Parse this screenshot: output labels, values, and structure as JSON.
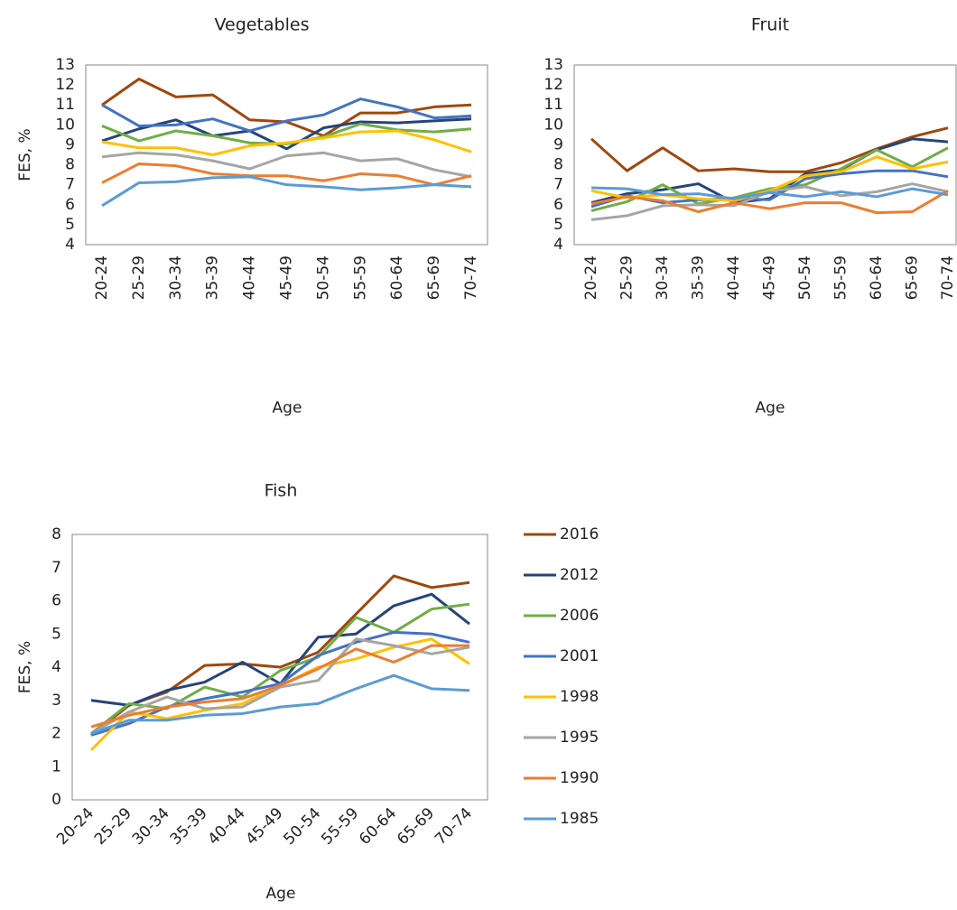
{
  "chart_data": [
    {
      "type": "line",
      "title": "Vegetables",
      "xlabel": "Age",
      "ylabel": "FES, %",
      "categories": [
        "20-24",
        "25-29",
        "30-34",
        "35-39",
        "40-44",
        "45-49",
        "50-54",
        "55-59",
        "60-64",
        "65-69",
        "70-74"
      ],
      "ylim": [
        4,
        13
      ],
      "yticks": [
        4,
        5,
        6,
        7,
        8,
        9,
        10,
        11,
        12,
        13
      ],
      "series": [
        {
          "name": "2016",
          "color": "#9e480e",
          "values": [
            11.0,
            12.3,
            11.4,
            11.5,
            10.25,
            10.15,
            9.45,
            10.6,
            10.6,
            10.9,
            11.0
          ]
        },
        {
          "name": "2012",
          "color": "#264478",
          "values": [
            9.2,
            9.8,
            10.25,
            9.45,
            9.7,
            8.8,
            9.85,
            10.15,
            10.1,
            10.2,
            10.3
          ]
        },
        {
          "name": "2006",
          "color": "#70ad47",
          "values": [
            9.95,
            9.2,
            9.7,
            9.45,
            9.1,
            9.05,
            9.4,
            10.05,
            9.75,
            9.65,
            9.8
          ]
        },
        {
          "name": "2001",
          "color": "#4472c4",
          "values": [
            11.0,
            9.95,
            10.0,
            10.3,
            9.7,
            10.2,
            10.5,
            11.3,
            10.9,
            10.35,
            10.45
          ]
        },
        {
          "name": "1998",
          "color": "#ffc000",
          "values": [
            9.15,
            8.85,
            8.85,
            8.5,
            8.95,
            9.1,
            9.35,
            9.65,
            9.7,
            9.25,
            8.65
          ]
        },
        {
          "name": "1995",
          "color": "#a5a5a5",
          "values": [
            8.4,
            8.6,
            8.5,
            8.2,
            7.8,
            8.45,
            8.6,
            8.2,
            8.3,
            7.75,
            7.4
          ]
        },
        {
          "name": "1990",
          "color": "#ed7d31",
          "values": [
            7.1,
            8.05,
            7.95,
            7.55,
            7.45,
            7.45,
            7.2,
            7.55,
            7.45,
            7.0,
            7.45
          ]
        },
        {
          "name": "1985",
          "color": "#5b9bd5",
          "values": [
            5.95,
            7.1,
            7.15,
            7.35,
            7.4,
            7.0,
            6.9,
            6.75,
            6.85,
            7.0,
            6.9
          ]
        }
      ]
    },
    {
      "type": "line",
      "title": "Fruit",
      "xlabel": "Age",
      "categories": [
        "20-24",
        "25-29",
        "30-34",
        "35-39",
        "40-44",
        "45-49",
        "50-54",
        "55-59",
        "60-64",
        "65-69",
        "70-74"
      ],
      "ylim": [
        4,
        13
      ],
      "yticks": [
        4,
        5,
        6,
        7,
        8,
        9,
        10,
        11,
        12,
        13
      ],
      "series": [
        {
          "name": "2016",
          "color": "#9e480e",
          "values": [
            9.3,
            7.7,
            8.85,
            7.7,
            7.8,
            7.65,
            7.65,
            8.1,
            8.8,
            9.4,
            9.85
          ]
        },
        {
          "name": "2012",
          "color": "#264478",
          "values": [
            6.1,
            6.55,
            6.75,
            7.05,
            6.1,
            6.3,
            7.55,
            7.75,
            8.75,
            9.3,
            9.15
          ]
        },
        {
          "name": "2006",
          "color": "#70ad47",
          "values": [
            5.7,
            6.15,
            7.0,
            6.05,
            6.35,
            6.8,
            7.0,
            7.8,
            8.75,
            7.9,
            8.85
          ]
        },
        {
          "name": "2001",
          "color": "#4472c4",
          "values": [
            5.9,
            6.45,
            6.1,
            6.25,
            6.3,
            6.25,
            7.3,
            7.55,
            7.7,
            7.7,
            7.4
          ]
        },
        {
          "name": "1998",
          "color": "#ffc000",
          "values": [
            6.7,
            6.35,
            6.5,
            6.3,
            6.2,
            6.7,
            7.45,
            7.65,
            8.4,
            7.8,
            8.15
          ]
        },
        {
          "name": "1995",
          "color": "#a5a5a5",
          "values": [
            5.25,
            5.45,
            5.95,
            6.0,
            5.95,
            6.65,
            6.9,
            6.45,
            6.65,
            7.05,
            6.65
          ]
        },
        {
          "name": "1990",
          "color": "#ed7d31",
          "values": [
            6.05,
            6.4,
            6.2,
            5.65,
            6.1,
            5.8,
            6.1,
            6.1,
            5.6,
            5.65,
            6.7
          ]
        },
        {
          "name": "1985",
          "color": "#5b9bd5",
          "values": [
            6.85,
            6.8,
            6.5,
            6.55,
            6.3,
            6.6,
            6.4,
            6.65,
            6.4,
            6.8,
            6.5
          ]
        }
      ]
    },
    {
      "type": "line",
      "title": "Fish",
      "xlabel": "Age",
      "ylabel": "FES, %",
      "categories": [
        "20-24",
        "25-29",
        "30-34",
        "35-39",
        "40-44",
        "45-49",
        "50-54",
        "55-59",
        "60-64",
        "65-69",
        "70-74"
      ],
      "ylim": [
        0,
        8
      ],
      "yticks": [
        0,
        1,
        2,
        3,
        4,
        5,
        6,
        7,
        8
      ],
      "series": [
        {
          "name": "2016",
          "color": "#9e480e",
          "values": [
            1.95,
            2.85,
            3.25,
            4.05,
            4.1,
            4.0,
            4.45,
            5.6,
            6.75,
            6.4,
            6.55
          ]
        },
        {
          "name": "2012",
          "color": "#264478",
          "values": [
            3.0,
            2.85,
            3.3,
            3.55,
            4.15,
            3.5,
            4.9,
            5.0,
            5.85,
            6.2,
            5.3
          ]
        },
        {
          "name": "2006",
          "color": "#70ad47",
          "values": [
            2.0,
            2.9,
            2.75,
            3.4,
            3.1,
            3.9,
            4.3,
            5.5,
            5.05,
            5.75,
            5.9
          ]
        },
        {
          "name": "2001",
          "color": "#4472c4",
          "values": [
            1.95,
            2.3,
            2.8,
            3.05,
            3.25,
            3.5,
            4.35,
            4.75,
            5.05,
            5.0,
            4.75
          ]
        },
        {
          "name": "1998",
          "color": "#ffc000",
          "values": [
            1.5,
            2.65,
            2.45,
            2.7,
            2.9,
            3.45,
            4.0,
            4.25,
            4.6,
            4.85,
            4.1
          ]
        },
        {
          "name": "1995",
          "color": "#a5a5a5",
          "values": [
            2.0,
            2.65,
            3.1,
            2.75,
            2.8,
            3.4,
            3.6,
            4.85,
            4.65,
            4.4,
            4.6
          ]
        },
        {
          "name": "1990",
          "color": "#ed7d31",
          "values": [
            2.2,
            2.55,
            2.8,
            2.95,
            3.05,
            3.45,
            3.95,
            4.55,
            4.15,
            4.65,
            4.65
          ]
        },
        {
          "name": "1985",
          "color": "#5b9bd5",
          "values": [
            2.0,
            2.4,
            2.4,
            2.55,
            2.6,
            2.8,
            2.9,
            3.35,
            3.75,
            3.35,
            3.3
          ]
        }
      ]
    }
  ]
}
